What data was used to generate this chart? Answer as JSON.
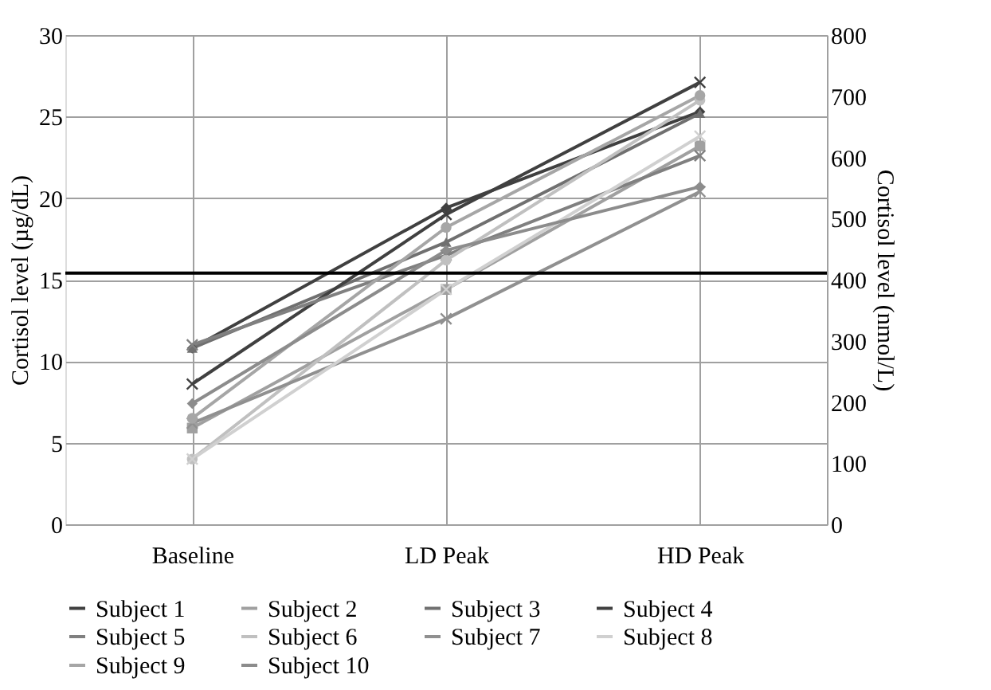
{
  "chart_data": {
    "type": "line",
    "xlabel": null,
    "ylabel": "Cortisol level (µg/dL)",
    "y2label": "Cortisol level (nmol/L)",
    "categories": [
      "Baseline",
      "LD Peak",
      "HD Peak"
    ],
    "series": [
      {
        "name": "Subject 1",
        "color": "#404040",
        "marker": "diamond",
        "values": [
          10.8,
          19.4,
          25.3
        ]
      },
      {
        "name": "Subject 2",
        "color": "#a0a0a0",
        "marker": "square",
        "values": [
          5.9,
          14.4,
          23.2
        ]
      },
      {
        "name": "Subject 3",
        "color": "#707070",
        "marker": "triangle",
        "values": [
          10.8,
          17.3,
          25.2
        ]
      },
      {
        "name": "Subject 4",
        "color": "#404040",
        "marker": "cross",
        "values": [
          8.6,
          19.0,
          27.1
        ]
      },
      {
        "name": "Subject 5",
        "color": "#808080",
        "marker": "cross",
        "values": [
          11.0,
          16.5,
          22.6
        ]
      },
      {
        "name": "Subject 6",
        "color": "#c0c0c0",
        "marker": "circle",
        "values": [
          4.0,
          16.2,
          26.0
        ]
      },
      {
        "name": "Subject 7",
        "color": "#909090",
        "marker": "cross",
        "values": [
          6.2,
          12.6,
          20.4
        ]
      },
      {
        "name": "Subject 8",
        "color": "#d0d0d0",
        "marker": "cross",
        "values": [
          4.0,
          14.4,
          23.8
        ]
      },
      {
        "name": "Subject 9",
        "color": "#a6a6a6",
        "marker": "circle",
        "values": [
          6.5,
          18.2,
          26.3
        ]
      },
      {
        "name": "Subject 10",
        "color": "#8c8c8c",
        "marker": "diamond",
        "values": [
          7.4,
          16.8,
          20.7
        ]
      }
    ],
    "ylim": [
      0,
      30
    ],
    "yticks": [
      0,
      5,
      10,
      15,
      20,
      25,
      30
    ],
    "y2lim": [
      0,
      800
    ],
    "y2ticks": [
      0,
      100,
      200,
      300,
      400,
      500,
      600,
      700,
      800
    ],
    "ref_lines": [
      {
        "axis": "y",
        "value": 15.4,
        "label": null,
        "color": "#000000"
      }
    ],
    "grid": true,
    "legend": "bottom",
    "line_style": "solid"
  }
}
